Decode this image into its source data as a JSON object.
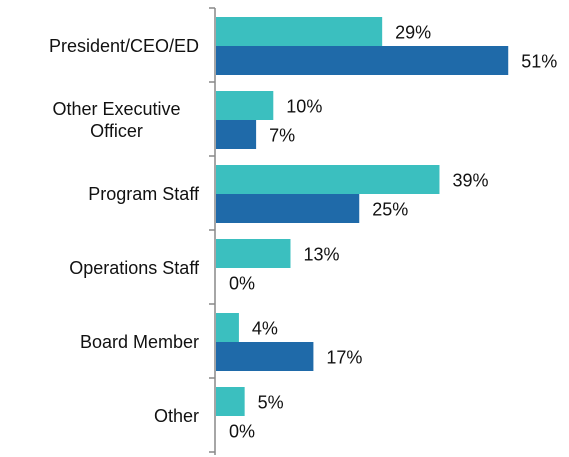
{
  "chart_data": {
    "type": "bar",
    "orientation": "horizontal",
    "categories": [
      "President/CEO/ED",
      "Other Executive Officer",
      "Program Staff",
      "Operations Staff",
      "Board Member",
      "Other"
    ],
    "series": [
      {
        "color": "#3bbfbf",
        "values": [
          29,
          10,
          39,
          13,
          4,
          5
        ],
        "value_labels": [
          "29%",
          "10%",
          "39%",
          "13%",
          "4%",
          "5%"
        ]
      },
      {
        "color": "#1f6aa9",
        "values": [
          51,
          7,
          25,
          0,
          17,
          0
        ],
        "value_labels": [
          "51%",
          "7%",
          "25%",
          "0%",
          "17%",
          "0%"
        ]
      }
    ]
  }
}
